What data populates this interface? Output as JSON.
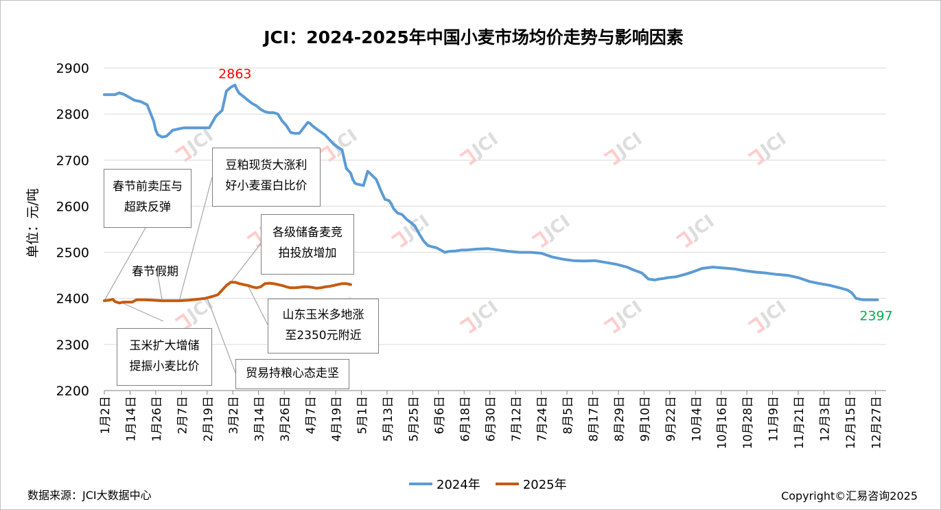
{
  "chart_data": {
    "type": "line",
    "title": "JCI：2024-2025年中国小麦市场均价走势与影响因素",
    "ylabel": "单位：元/吨",
    "xlabel": "",
    "ylim": [
      2200,
      2900
    ],
    "yticks": [
      2200,
      2300,
      2400,
      2500,
      2600,
      2700,
      2800,
      2900
    ],
    "grid": true,
    "legend_position": "bottom",
    "x_tick_labels": [
      "1月2日",
      "1月14日",
      "1月26日",
      "2月7日",
      "2月19日",
      "3月2日",
      "3月14日",
      "3月26日",
      "4月7日",
      "4月19日",
      "5月1日",
      "5月13日",
      "5月25日",
      "6月6日",
      "6月18日",
      "6月30日",
      "7月12日",
      "7月24日",
      "8月5日",
      "8月17日",
      "8月29日",
      "9月10日",
      "9月22日",
      "10月4日",
      "10月16日",
      "10月28日",
      "11月9日",
      "11月21日",
      "12月3日",
      "12月15日",
      "12月27日"
    ],
    "series": [
      {
        "name": "2024年",
        "color": "#5b9bd5",
        "x_day": [
          1,
          6,
          8,
          10,
          12,
          15,
          18,
          21,
          24,
          25,
          26,
          28,
          30,
          33,
          36,
          38,
          41,
          44,
          47,
          50,
          53,
          56,
          58,
          60,
          62,
          63,
          64,
          66,
          68,
          70,
          72,
          74,
          76,
          78,
          80,
          82,
          84,
          86,
          88,
          90,
          92,
          94,
          96,
          97,
          98,
          100,
          104,
          106,
          108,
          110,
          112,
          114,
          116,
          117,
          118,
          119,
          120,
          122,
          124,
          128,
          130,
          132,
          134,
          135,
          136,
          137,
          138,
          140,
          142,
          144,
          146,
          148,
          150,
          152,
          154,
          156,
          160,
          162,
          165,
          168,
          170,
          175,
          180,
          185,
          190,
          195,
          200,
          205,
          210,
          215,
          220,
          225,
          230,
          235,
          240,
          245,
          248,
          252,
          255,
          258,
          260,
          262,
          264,
          268,
          272,
          276,
          280,
          285,
          290,
          295,
          300,
          305,
          310,
          315,
          320,
          325,
          330,
          335,
          340,
          345,
          348,
          350,
          352,
          355,
          358,
          362
        ],
        "values": [
          2842,
          2842,
          2846,
          2843,
          2838,
          2830,
          2827,
          2820,
          2785,
          2765,
          2755,
          2750,
          2752,
          2765,
          2768,
          2770,
          2770,
          2770,
          2770,
          2770,
          2795,
          2808,
          2850,
          2858,
          2863,
          2852,
          2845,
          2838,
          2830,
          2823,
          2818,
          2810,
          2805,
          2803,
          2803,
          2800,
          2785,
          2775,
          2760,
          2758,
          2758,
          2770,
          2782,
          2780,
          2775,
          2768,
          2755,
          2745,
          2735,
          2728,
          2722,
          2682,
          2672,
          2658,
          2650,
          2648,
          2647,
          2645,
          2676,
          2658,
          2635,
          2615,
          2612,
          2605,
          2595,
          2590,
          2585,
          2582,
          2572,
          2565,
          2557,
          2540,
          2525,
          2515,
          2512,
          2510,
          2500,
          2502,
          2503,
          2505,
          2505,
          2507,
          2508,
          2505,
          2502,
          2500,
          2500,
          2498,
          2490,
          2485,
          2482,
          2481,
          2482,
          2478,
          2474,
          2468,
          2462,
          2455,
          2442,
          2440,
          2442,
          2443,
          2445,
          2447,
          2452,
          2458,
          2465,
          2468,
          2466,
          2464,
          2460,
          2457,
          2455,
          2452,
          2450,
          2445,
          2437,
          2432,
          2428,
          2422,
          2418,
          2412,
          2400,
          2397,
          2397,
          2397
        ],
        "peak_label": "2863",
        "end_label": "2397",
        "peak_label_color": "#ff0000",
        "end_label_color": "#00b050"
      },
      {
        "name": "2025年",
        "color": "#c55a11",
        "x_day": [
          1,
          3,
          5,
          6,
          8,
          10,
          12,
          14,
          16,
          18,
          20,
          24,
          28,
          32,
          36,
          40,
          44,
          48,
          52,
          54,
          56,
          58,
          60,
          62,
          64,
          66,
          68,
          70,
          72,
          74,
          76,
          78,
          80,
          82,
          84,
          86,
          88,
          90,
          92,
          94,
          96,
          98,
          100,
          102,
          104,
          106,
          108,
          110,
          112,
          114,
          116
        ],
        "values": [
          2395,
          2396,
          2398,
          2393,
          2390,
          2392,
          2392,
          2392,
          2397,
          2397,
          2397,
          2396,
          2395,
          2395,
          2395,
          2396,
          2398,
          2400,
          2405,
          2408,
          2418,
          2428,
          2435,
          2435,
          2432,
          2430,
          2428,
          2425,
          2423,
          2425,
          2432,
          2433,
          2432,
          2430,
          2428,
          2425,
          2423,
          2423,
          2424,
          2425,
          2425,
          2424,
          2422,
          2423,
          2425,
          2426,
          2428,
          2430,
          2432,
          2432,
          2430
        ]
      }
    ],
    "annotations": [
      {
        "text": "春节前卖压与\n超跌反弹",
        "boxed": true
      },
      {
        "text": "豆粕现货大涨利\n好小麦蛋白比价",
        "boxed": true
      },
      {
        "text": "各级储备麦竞\n拍投放增加",
        "boxed": true
      },
      {
        "text": "春节假期",
        "boxed": false
      },
      {
        "text": "山东玉米多地涨\n至2350元附近",
        "boxed": true
      },
      {
        "text": "玉米扩大增储\n提振小麦比价",
        "boxed": true
      },
      {
        "text": "贸易持粮心态走坚",
        "boxed": true
      }
    ]
  },
  "footer": {
    "source": "数据来源：JCI大数据中心",
    "copyright": "Copyright©汇易咨询2025"
  },
  "watermark": "JCI"
}
